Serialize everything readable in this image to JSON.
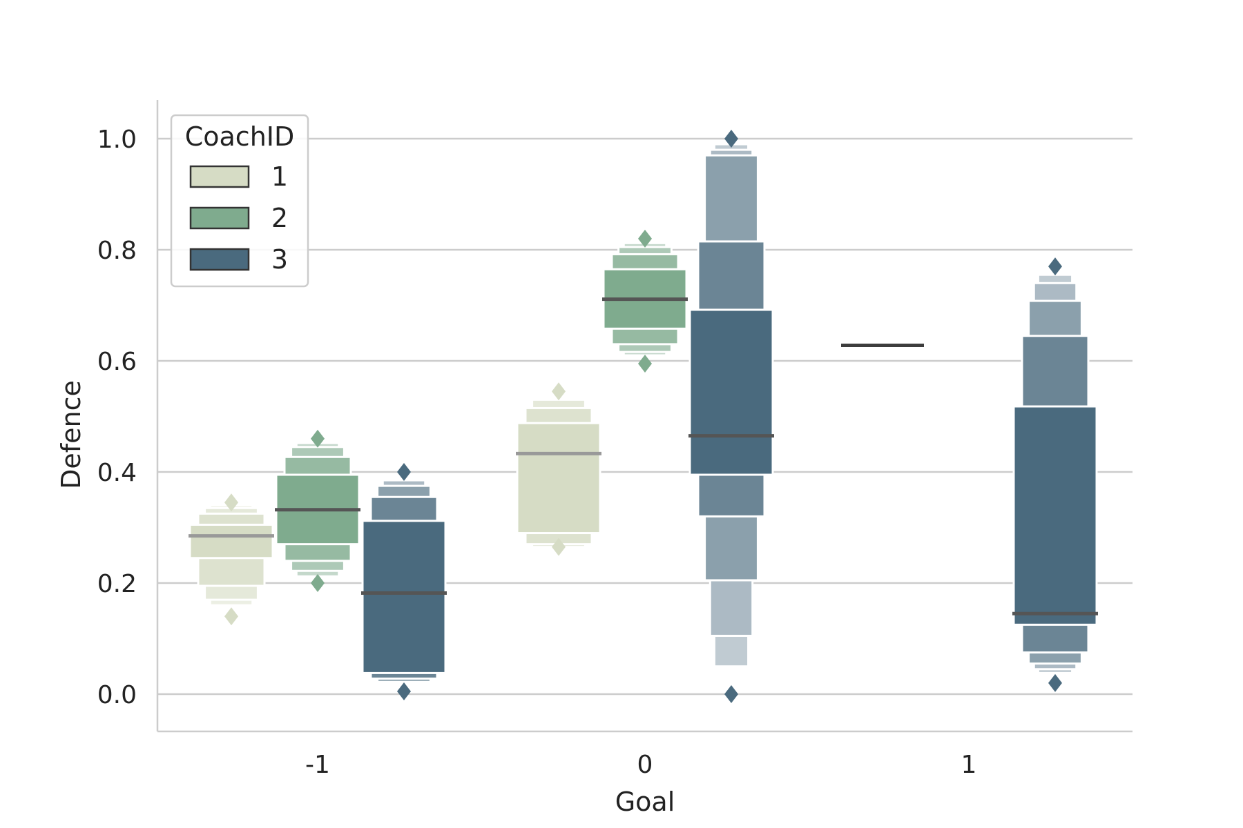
{
  "chart_data": {
    "type": "boxen",
    "xlabel": "Goal",
    "ylabel": "Defence",
    "categories": [
      "-1",
      "0",
      "1"
    ],
    "ylim": [
      -0.07,
      1.07
    ],
    "yticks": [
      0.0,
      0.2,
      0.4,
      0.6,
      0.8,
      1.0
    ],
    "ytick_labels": [
      "0.0",
      "0.2",
      "0.4",
      "0.6",
      "0.8",
      "1.0"
    ],
    "grid": "horizontal",
    "legend": {
      "title": "CoachID",
      "position": "top-left",
      "entries": [
        "1",
        "2",
        "3"
      ]
    },
    "colors": {
      "1": "#d6dcc5",
      "2": "#7fab8e",
      "3": "#4a6a7e"
    },
    "series": [
      {
        "name": "1",
        "groups": [
          {
            "category": "-1",
            "median": 0.285,
            "boxes": [
              [
                0.245,
                0.305
              ],
              [
                0.195,
                0.325
              ],
              [
                0.17,
                0.335
              ],
              [
                0.16,
                0.34
              ]
            ],
            "outliers": [
              0.345,
              0.14
            ]
          },
          {
            "category": "0",
            "median": 0.433,
            "boxes": [
              [
                0.29,
                0.488
              ],
              [
                0.27,
                0.515
              ],
              [
                0.265,
                0.53
              ]
            ],
            "outliers": [
              0.545,
              0.265
            ]
          },
          {
            "category": "1",
            "median": 0.628,
            "boxes": [],
            "outliers": []
          }
        ]
      },
      {
        "name": "2",
        "groups": [
          {
            "category": "-1",
            "median": 0.332,
            "boxes": [
              [
                0.27,
                0.395
              ],
              [
                0.24,
                0.427
              ],
              [
                0.222,
                0.445
              ],
              [
                0.212,
                0.452
              ]
            ],
            "outliers": [
              0.46,
              0.2
            ]
          },
          {
            "category": "0",
            "median": 0.711,
            "boxes": [
              [
                0.658,
                0.765
              ],
              [
                0.63,
                0.792
              ],
              [
                0.616,
                0.805
              ],
              [
                0.61,
                0.812
              ]
            ],
            "outliers": [
              0.82,
              0.595
            ]
          },
          {
            "category": "1",
            "median": null,
            "boxes": [],
            "outliers": []
          }
        ]
      },
      {
        "name": "3",
        "groups": [
          {
            "category": "-1",
            "median": 0.182,
            "boxes": [
              [
                0.038,
                0.312
              ],
              [
                0.028,
                0.355
              ],
              [
                0.022,
                0.375
              ],
              [
                0.02,
                0.385
              ]
            ],
            "outliers": [
              0.4,
              0.005
            ]
          },
          {
            "category": "0",
            "median": 0.465,
            "boxes": [
              [
                0.395,
                0.692
              ],
              [
                0.32,
                0.815
              ],
              [
                0.205,
                0.97
              ],
              [
                0.105,
                0.98
              ],
              [
                0.05,
                0.99
              ]
            ],
            "outliers": [
              1.0,
              0.0
            ]
          },
          {
            "category": "1",
            "median": 0.145,
            "boxes": [
              [
                0.125,
                0.518
              ],
              [
                0.075,
                0.645
              ],
              [
                0.055,
                0.708
              ],
              [
                0.045,
                0.74
              ],
              [
                0.038,
                0.755
              ]
            ],
            "outliers": [
              0.77,
              0.02
            ]
          }
        ]
      }
    ]
  }
}
